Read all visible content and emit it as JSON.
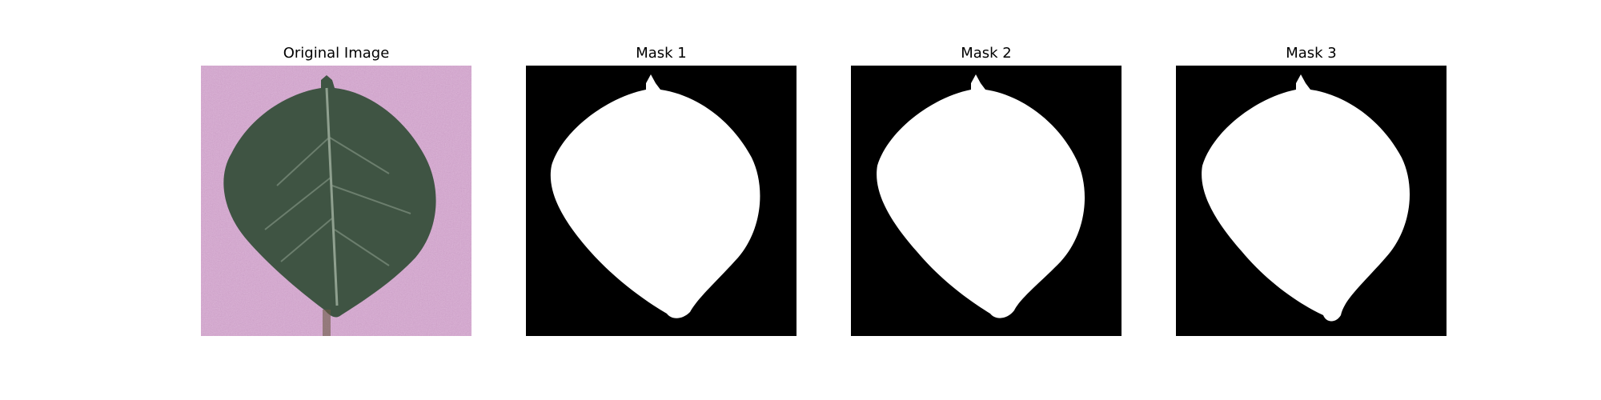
{
  "figure": {
    "panels": [
      {
        "title": "Original Image",
        "kind": "photo"
      },
      {
        "title": "Mask 1",
        "kind": "mask"
      },
      {
        "title": "Mask 2",
        "kind": "mask"
      },
      {
        "title": "Mask 3",
        "kind": "mask"
      }
    ]
  },
  "colors": {
    "background": "#d4a9cf",
    "leaf_dark": "#3f5443",
    "leaf_mid": "#536a55",
    "vein": "#8fa08f",
    "mask_fg": "#ffffff",
    "mask_bg": "#000000"
  }
}
